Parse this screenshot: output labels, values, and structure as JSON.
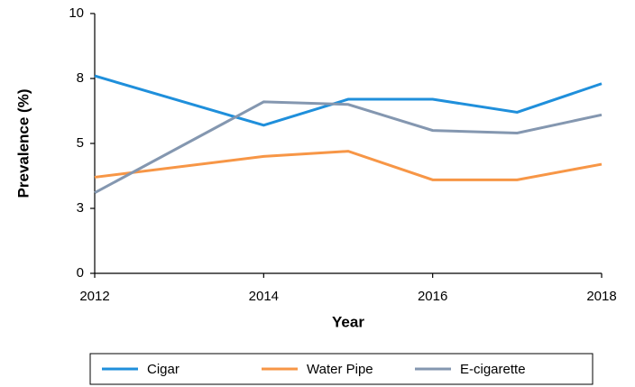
{
  "chart_data": {
    "type": "line",
    "x": [
      2012,
      2014,
      2015,
      2016,
      2017,
      2018
    ],
    "xlabel": "Year",
    "ylabel": "Prevalence (%)",
    "xlim": [
      2012,
      2018
    ],
    "xticks": [
      2012,
      2014,
      2016,
      2018
    ],
    "ylim": [
      0,
      10
    ],
    "yticks": [
      0,
      {
        "value": 2.5,
        "label": "3"
      },
      5,
      {
        "value": 7.5,
        "label": "8"
      },
      10
    ],
    "legend": "bottom",
    "series": [
      {
        "name": "Cigar",
        "color": "#1f8fdb",
        "values": [
          7.6,
          5.7,
          6.7,
          6.7,
          6.2,
          7.3
        ]
      },
      {
        "name": "Water Pipe",
        "color": "#f79646",
        "values": [
          3.7,
          4.5,
          4.7,
          3.6,
          3.6,
          4.2
        ]
      },
      {
        "name": "E-cigarette",
        "color": "#8497b0",
        "values": [
          3.1,
          6.6,
          6.5,
          5.5,
          5.4,
          6.1
        ]
      }
    ]
  }
}
